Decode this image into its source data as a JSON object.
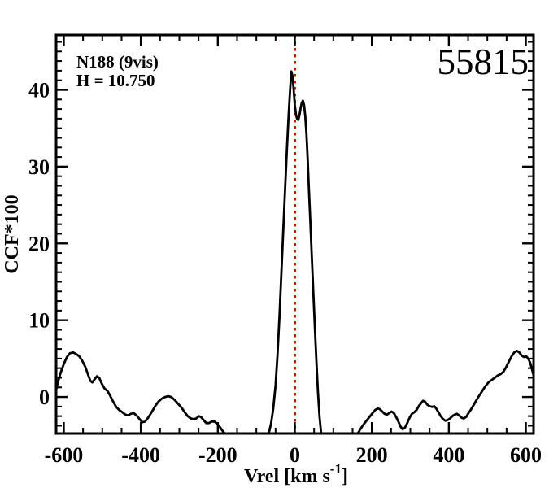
{
  "figure": {
    "target_label": "N188 (9vis)",
    "magnitude_label": "H = 10.750",
    "epoch_label": "55815",
    "background_color": "#ffffff",
    "frame_color": "#000000"
  },
  "chart_data": {
    "type": "line",
    "title": "",
    "xlabel_main": "Vrel [km s",
    "xlabel_sup": "-1",
    "xlabel_close": "]",
    "ylabel": "CCF*100",
    "xlim": [
      -620,
      620
    ],
    "ylim": [
      -4.76,
      47.15
    ],
    "grid": false,
    "legend": "none",
    "x_major_ticks": [
      -600,
      -400,
      -200,
      0,
      200,
      400,
      600
    ],
    "x_tick_labels": [
      "-600",
      "-400",
      "-200",
      "0",
      "200",
      "400",
      "600"
    ],
    "x_minor_step": 50,
    "y_major_ticks": [
      0,
      10,
      20,
      30,
      40
    ],
    "y_tick_labels": [
      "0",
      "10",
      "20",
      "30",
      "40"
    ],
    "y_minor_step": 1.25,
    "reference_line": {
      "x": 0,
      "color": "#ee0000",
      "style": "dotted"
    },
    "series": [
      {
        "name": "CCF",
        "color": "#000000",
        "points": [
          [
            -620,
            0.9
          ],
          [
            -615,
            2.0
          ],
          [
            -608,
            3.2
          ],
          [
            -600,
            4.3
          ],
          [
            -592,
            5.2
          ],
          [
            -584,
            5.7
          ],
          [
            -576,
            5.8
          ],
          [
            -568,
            5.6
          ],
          [
            -560,
            5.3
          ],
          [
            -552,
            4.7
          ],
          [
            -544,
            3.9
          ],
          [
            -537,
            2.9
          ],
          [
            -531,
            2.1
          ],
          [
            -526,
            1.9
          ],
          [
            -520,
            2.3
          ],
          [
            -514,
            2.7
          ],
          [
            -508,
            2.5
          ],
          [
            -501,
            1.7
          ],
          [
            -494,
            1.1
          ],
          [
            -487,
            0.8
          ],
          [
            -480,
            0.2
          ],
          [
            -472,
            -0.6
          ],
          [
            -464,
            -1.3
          ],
          [
            -456,
            -1.7
          ],
          [
            -448,
            -2.0
          ],
          [
            -440,
            -2.3
          ],
          [
            -433,
            -2.4
          ],
          [
            -426,
            -2.2
          ],
          [
            -419,
            -2.1
          ],
          [
            -411,
            -2.4
          ],
          [
            -403,
            -2.9
          ],
          [
            -396,
            -3.3
          ],
          [
            -389,
            -3.2
          ],
          [
            -381,
            -2.7
          ],
          [
            -372,
            -2.0
          ],
          [
            -363,
            -1.2
          ],
          [
            -354,
            -0.6
          ],
          [
            -345,
            -0.2
          ],
          [
            -337,
            0.0
          ],
          [
            -329,
            0.1
          ],
          [
            -321,
            0.0
          ],
          [
            -312,
            -0.4
          ],
          [
            -303,
            -0.9
          ],
          [
            -294,
            -1.4
          ],
          [
            -286,
            -2.0
          ],
          [
            -278,
            -2.5
          ],
          [
            -270,
            -2.8
          ],
          [
            -263,
            -2.9
          ],
          [
            -256,
            -2.8
          ],
          [
            -250,
            -2.5
          ],
          [
            -244,
            -2.6
          ],
          [
            -237,
            -3.0
          ],
          [
            -230,
            -3.4
          ],
          [
            -223,
            -3.4
          ],
          [
            -216,
            -3.2
          ],
          [
            -209,
            -3.2
          ],
          [
            -202,
            -3.5
          ],
          [
            -195,
            -3.9
          ],
          [
            -188,
            -4.4
          ],
          [
            -180,
            -4.9
          ],
          [
            -172,
            -5.5
          ],
          [
            -160,
            -6.3
          ],
          [
            -145,
            -7.0
          ],
          [
            -125,
            -7.4
          ],
          [
            -105,
            -7.4
          ],
          [
            -88,
            -6.8
          ],
          [
            -76,
            -5.9
          ],
          [
            -68,
            -4.8
          ],
          [
            -62,
            -3.5
          ],
          [
            -56,
            -1.5
          ],
          [
            -50,
            1.5
          ],
          [
            -45,
            5.5
          ],
          [
            -40,
            10.5
          ],
          [
            -35,
            16.0
          ],
          [
            -30,
            21.8
          ],
          [
            -25,
            27.5
          ],
          [
            -20,
            32.8
          ],
          [
            -16,
            36.8
          ],
          [
            -12,
            40.2
          ],
          [
            -9,
            42.4
          ],
          [
            -6,
            41.8
          ],
          [
            -3,
            40.0
          ],
          [
            0,
            38.0
          ],
          [
            3,
            36.8
          ],
          [
            6,
            36.2
          ],
          [
            9,
            36.1
          ],
          [
            12,
            36.7
          ],
          [
            15,
            37.6
          ],
          [
            18,
            38.3
          ],
          [
            21,
            38.6
          ],
          [
            24,
            38.0
          ],
          [
            27,
            36.6
          ],
          [
            30,
            34.4
          ],
          [
            33,
            31.4
          ],
          [
            36,
            27.8
          ],
          [
            40,
            23.2
          ],
          [
            44,
            18.4
          ],
          [
            48,
            13.7
          ],
          [
            52,
            9.1
          ],
          [
            56,
            4.7
          ],
          [
            60,
            0.7
          ],
          [
            64,
            -2.5
          ],
          [
            68,
            -4.6
          ],
          [
            73,
            -6.2
          ],
          [
            80,
            -7.4
          ],
          [
            95,
            -8.2
          ],
          [
            115,
            -8.4
          ],
          [
            135,
            -7.8
          ],
          [
            148,
            -6.6
          ],
          [
            156,
            -5.5
          ],
          [
            163,
            -4.8
          ],
          [
            170,
            -4.2
          ],
          [
            178,
            -3.6
          ],
          [
            186,
            -3.1
          ],
          [
            194,
            -2.6
          ],
          [
            202,
            -2.1
          ],
          [
            209,
            -1.7
          ],
          [
            215,
            -1.5
          ],
          [
            221,
            -1.6
          ],
          [
            227,
            -1.9
          ],
          [
            233,
            -2.2
          ],
          [
            239,
            -2.3
          ],
          [
            245,
            -2.1
          ],
          [
            251,
            -1.9
          ],
          [
            257,
            -2.1
          ],
          [
            263,
            -2.6
          ],
          [
            269,
            -3.2
          ],
          [
            275,
            -3.9
          ],
          [
            280,
            -4.2
          ],
          [
            286,
            -4.0
          ],
          [
            292,
            -3.4
          ],
          [
            298,
            -2.7
          ],
          [
            304,
            -2.2
          ],
          [
            310,
            -2.0
          ],
          [
            316,
            -1.7
          ],
          [
            322,
            -1.2
          ],
          [
            328,
            -0.8
          ],
          [
            333,
            -0.5
          ],
          [
            338,
            -0.6
          ],
          [
            344,
            -1.0
          ],
          [
            350,
            -1.2
          ],
          [
            357,
            -1.3
          ],
          [
            362,
            -1.2
          ],
          [
            367,
            -1.5
          ],
          [
            373,
            -2.0
          ],
          [
            379,
            -2.5
          ],
          [
            385,
            -2.9
          ],
          [
            391,
            -3.1
          ],
          [
            397,
            -3.0
          ],
          [
            403,
            -2.8
          ],
          [
            409,
            -2.5
          ],
          [
            415,
            -2.3
          ],
          [
            421,
            -2.2
          ],
          [
            427,
            -2.4
          ],
          [
            433,
            -2.7
          ],
          [
            439,
            -2.8
          ],
          [
            445,
            -2.6
          ],
          [
            451,
            -2.1
          ],
          [
            458,
            -1.6
          ],
          [
            465,
            -1.0
          ],
          [
            472,
            -0.4
          ],
          [
            479,
            0.2
          ],
          [
            487,
            0.8
          ],
          [
            495,
            1.4
          ],
          [
            503,
            1.9
          ],
          [
            511,
            2.2
          ],
          [
            519,
            2.5
          ],
          [
            527,
            2.8
          ],
          [
            535,
            3.0
          ],
          [
            542,
            3.3
          ],
          [
            549,
            3.9
          ],
          [
            556,
            4.6
          ],
          [
            563,
            5.3
          ],
          [
            570,
            5.8
          ],
          [
            577,
            6.0
          ],
          [
            583,
            5.8
          ],
          [
            589,
            5.4
          ],
          [
            595,
            5.2
          ],
          [
            601,
            5.3
          ],
          [
            606,
            5.0
          ],
          [
            611,
            4.5
          ],
          [
            615,
            3.8
          ],
          [
            618,
            3.2
          ],
          [
            620,
            2.8
          ]
        ]
      }
    ]
  }
}
